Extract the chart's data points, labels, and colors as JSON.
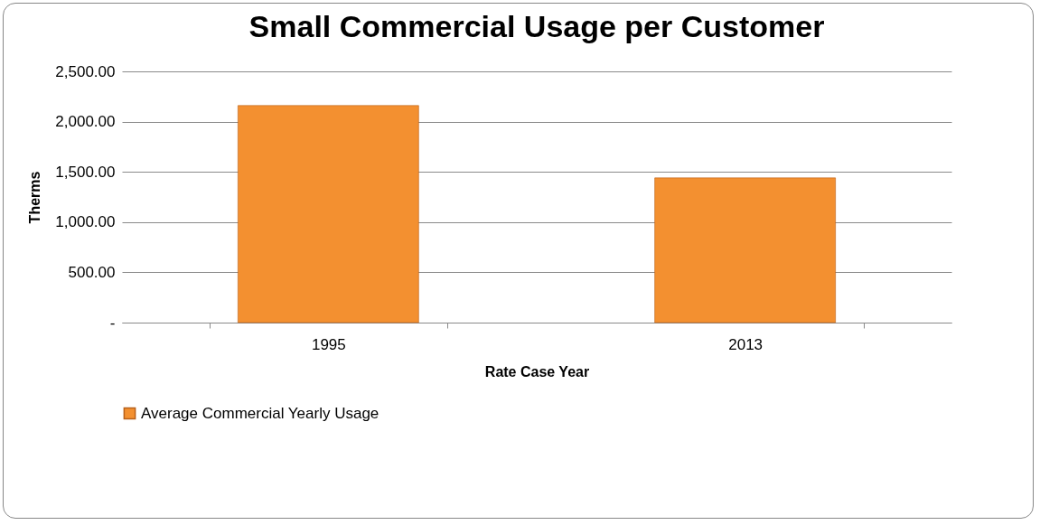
{
  "chart_data": {
    "type": "bar",
    "title": "Small Commercial Usage per Customer",
    "xlabel": "Rate Case Year",
    "ylabel": "Therms",
    "categories": [
      "1995",
      "2013"
    ],
    "series": [
      {
        "name": "Average Commercial Yearly Usage",
        "color": "#f39030",
        "values": [
          2160,
          1440
        ]
      }
    ],
    "ylim": [
      0,
      2500
    ],
    "yticks": [
      {
        "value": 0,
        "label": "-"
      },
      {
        "value": 500,
        "label": "500.00"
      },
      {
        "value": 1000,
        "label": "1,000.00"
      },
      {
        "value": 1500,
        "label": "1,500.00"
      },
      {
        "value": 2000,
        "label": "2,000.00"
      },
      {
        "value": 2500,
        "label": "2,500.00"
      }
    ],
    "grid": "y",
    "legend": "bottom"
  }
}
